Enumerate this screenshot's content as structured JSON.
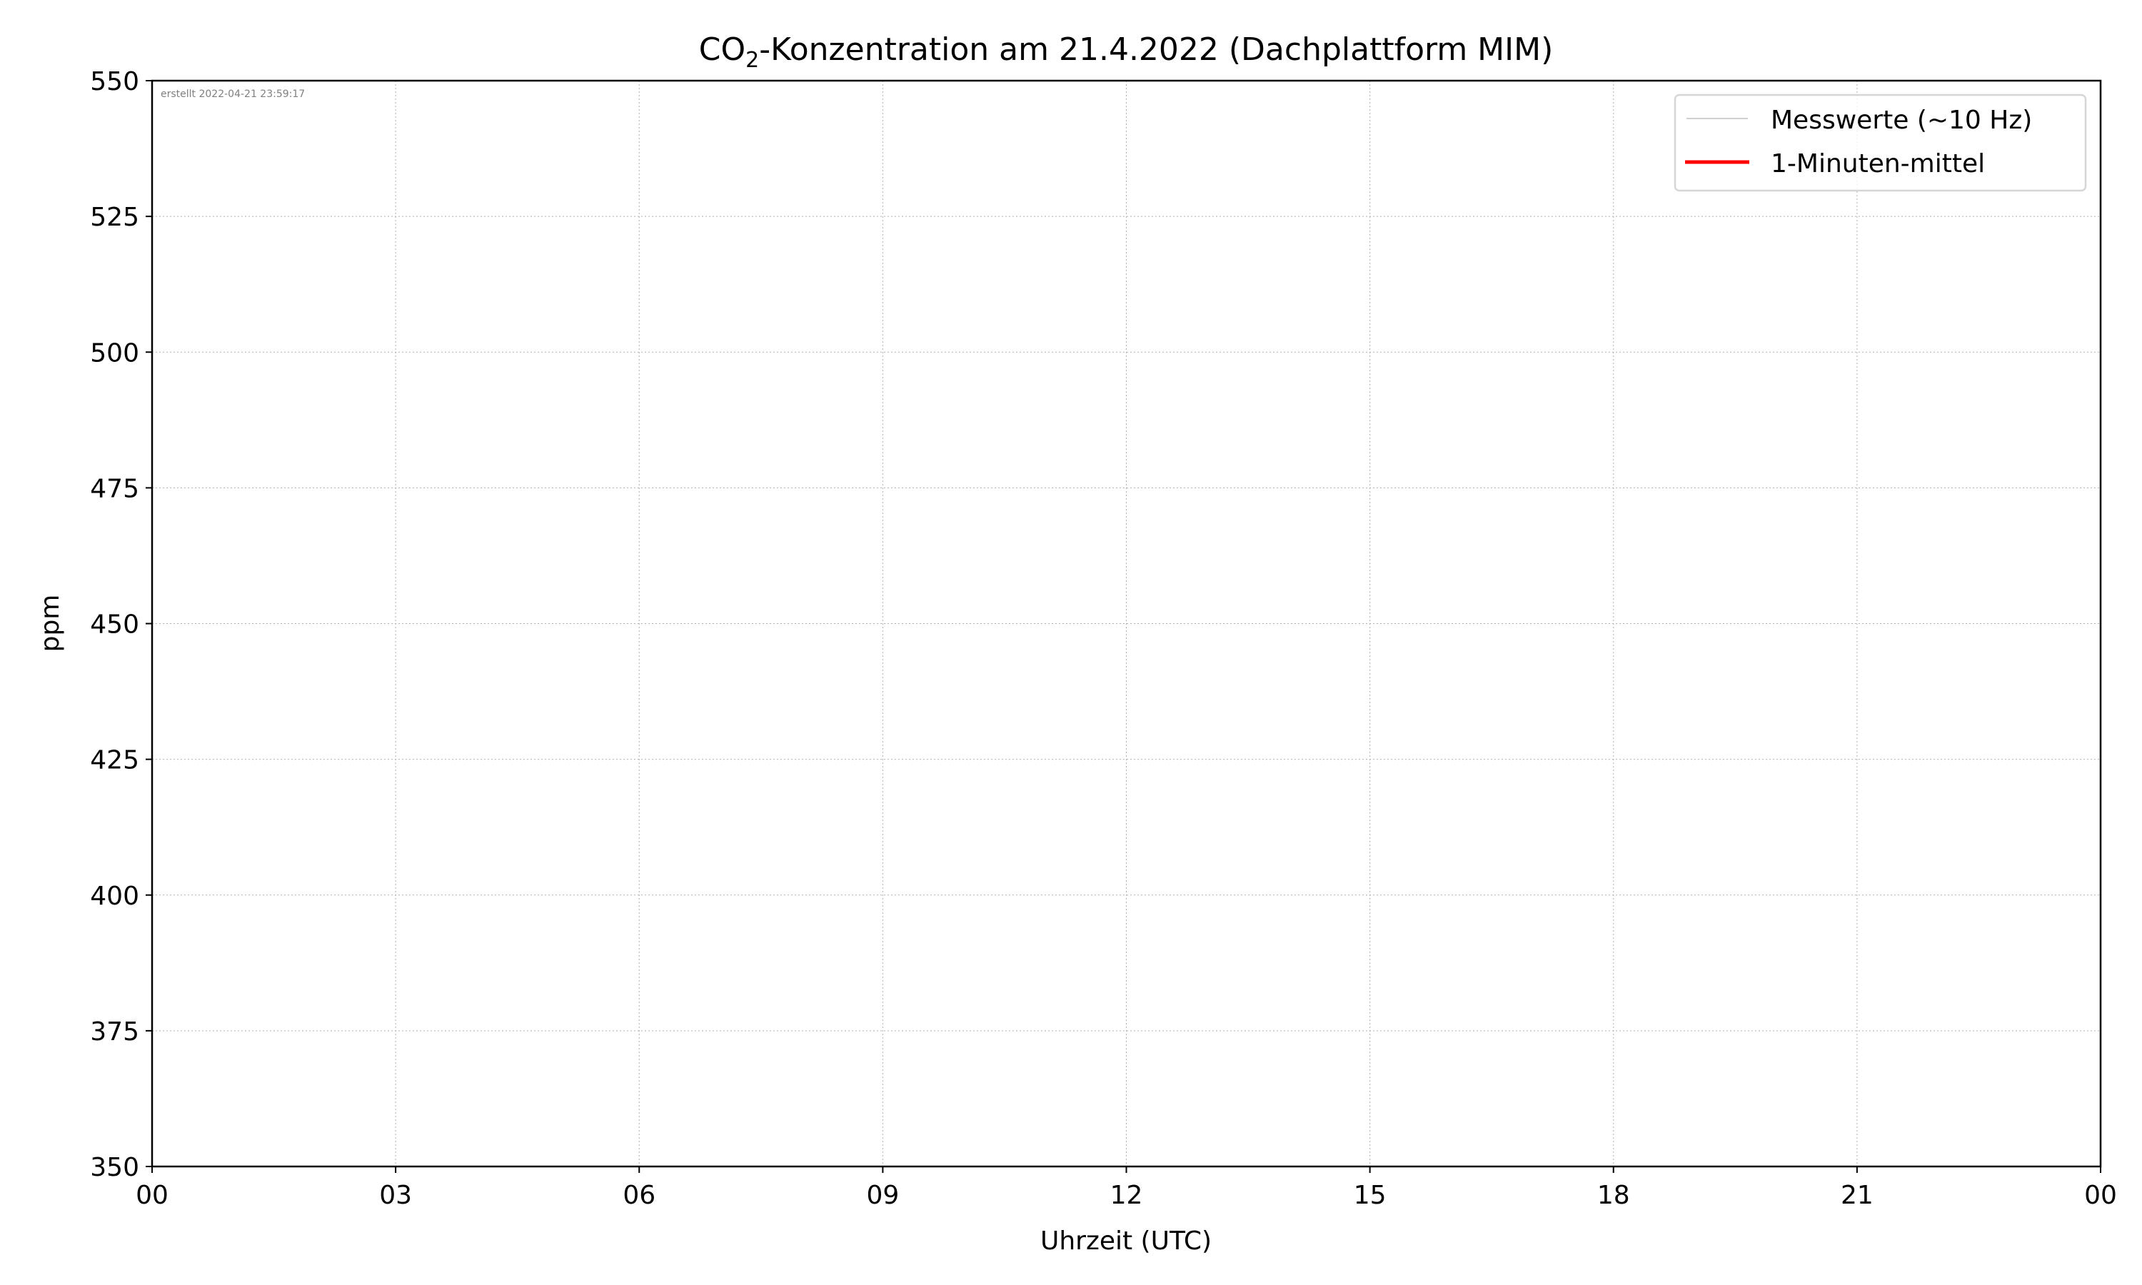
{
  "chart_data": {
    "type": "line",
    "title_prefix": "CO",
    "title_subscript": "2",
    "title_suffix": "-Konzentration am 21.4.2022 (Dachplattform MIM)",
    "xlabel": "Uhrzeit (UTC)",
    "ylabel": "ppm",
    "annotation": "erstellt 2022-04-21 23:59:17",
    "xlim": [
      "00:00",
      "24:00"
    ],
    "ylim": [
      350,
      550
    ],
    "x_tick_labels": [
      "00",
      "03",
      "06",
      "09",
      "12",
      "15",
      "18",
      "21",
      "00"
    ],
    "y_ticks": [
      350,
      375,
      400,
      425,
      450,
      475,
      500,
      525,
      550
    ],
    "grid": true,
    "legend_position": "top-right",
    "series": [
      {
        "name": "Messwerte (~10 Hz)",
        "color": "#c0c0c0",
        "x": [],
        "y": []
      },
      {
        "name": "1-Minuten-mittel",
        "color": "#ff0000",
        "x": [],
        "y": []
      }
    ]
  }
}
